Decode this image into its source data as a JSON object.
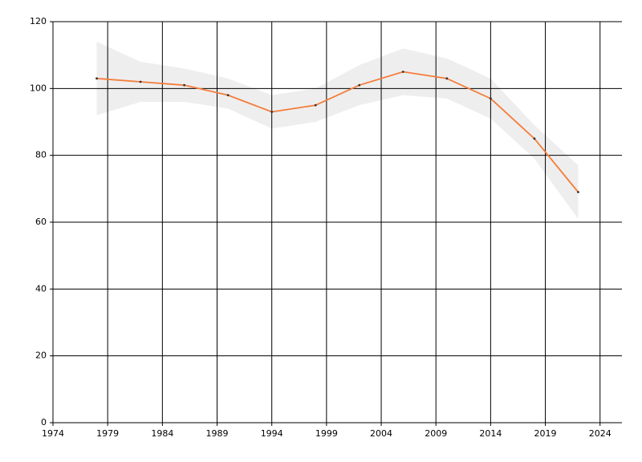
{
  "chart_data": {
    "type": "line",
    "x": [
      1978,
      1982,
      1986,
      1990,
      1994,
      1998,
      2002,
      2006,
      2010,
      2014,
      2018,
      2022
    ],
    "series": [
      {
        "color": "#f57c3a",
        "values": [
          103,
          102,
          101,
          98,
          93,
          95,
          101,
          105,
          103,
          97,
          85,
          69
        ],
        "lower": [
          92,
          96,
          96,
          94,
          88,
          90,
          95,
          98,
          97,
          91,
          79,
          61
        ],
        "upper": [
          114,
          108,
          106,
          103,
          98,
          100,
          107,
          112,
          109,
          103,
          89,
          77
        ],
        "band_color": "#eeeeee"
      }
    ],
    "xlim": [
      1974,
      2026
    ],
    "xticks": [
      1974,
      1979,
      1984,
      1989,
      1994,
      1999,
      2004,
      2009,
      2014,
      2019,
      2024
    ],
    "ylim": [
      0,
      120
    ],
    "yticks": [
      0,
      20,
      40,
      60,
      80,
      100,
      120
    ],
    "grid": true
  }
}
